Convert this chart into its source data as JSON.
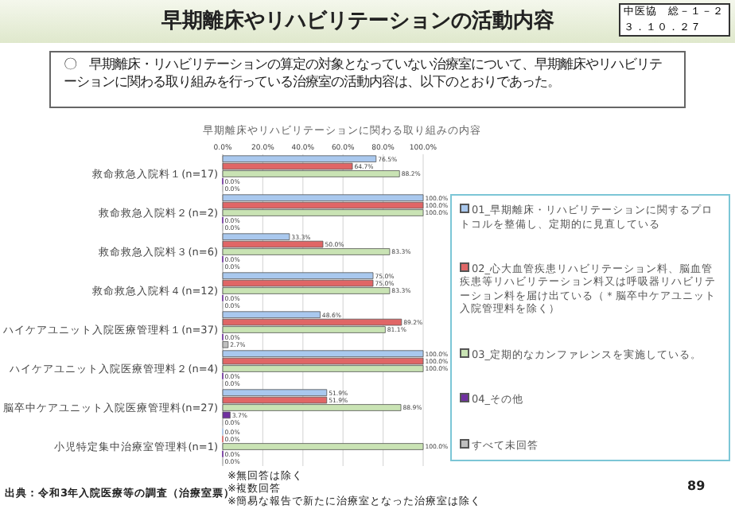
{
  "chart_data": {
    "type": "bar",
    "orientation": "horizontal",
    "title": "早期離床やリハビリテーションの活動内容",
    "subtitle": "早期離床やリハビリテーションに関わる取り組みの内容",
    "categories": [
      "救命救急入院料１(n=17)",
      "救命救急入院料２(n=2)",
      "救命救急入院料３(n=6)",
      "救命救急入院料４(n=12)",
      "ハイケアユニット入院医療管理料１(n=37)",
      "ハイケアユニット入院医療管理料２(n=4)",
      "脳卒中ケアユニット入院医療管理料(n=27)",
      "小児特定集中治療室管理料(n=1)"
    ],
    "series": [
      {
        "name": "01_早期離床・リハビリテーションに関するプロトコルを整備し、定期的に見直している",
        "color": "#a9c8ee",
        "values": [
          76.5,
          100.0,
          33.3,
          75.0,
          48.6,
          100.0,
          51.9,
          0.0
        ],
        "value_labels": [
          "76.5%",
          "100.0%",
          "33.3%",
          "75.0%",
          "48.6%",
          "100.0%",
          "51.9%",
          "0.0%"
        ]
      },
      {
        "name": "02_心大血管疾患リハビリテーション料、脳血管疾患等リハビリテーション料又は呼吸器リハビリテーション料を届け出ている（＊脳卒中ケアユニット入院管理料を除く）",
        "color": "#e06666",
        "values": [
          64.7,
          100.0,
          50.0,
          75.0,
          89.2,
          100.0,
          51.9,
          0.0
        ],
        "value_labels": [
          "64.7%",
          "100.0%",
          "50.0%",
          "75.0%",
          "89.2%",
          "100.0%",
          "51.9%",
          "0.0%"
        ]
      },
      {
        "name": "03_定期的なカンファレンスを実施している。",
        "color": "#c9e3b4",
        "values": [
          88.2,
          100.0,
          83.3,
          83.3,
          81.1,
          100.0,
          88.9,
          100.0
        ],
        "value_labels": [
          "88.2%",
          "100.0%",
          "83.3%",
          "83.3%",
          "81.1%",
          "100.0%",
          "88.9%",
          "100.0%"
        ]
      },
      {
        "name": "04_その他",
        "color": "#7030a0",
        "values": [
          0.0,
          0.0,
          0.0,
          0.0,
          0.0,
          0.0,
          3.7,
          0.0
        ],
        "value_labels": [
          "0.0%",
          "0.0%",
          "0.0%",
          "0.0%",
          "0.0%",
          "0.0%",
          "3.7%",
          "0.0%"
        ]
      },
      {
        "name": "すべて未回答",
        "color": "#bfbfbf",
        "values": [
          0.0,
          0.0,
          0.0,
          0.0,
          2.7,
          0.0,
          0.0,
          0.0
        ],
        "value_labels": [
          "0.0%",
          "0.0%",
          "0.0%",
          "0.0%",
          "2.7%",
          "0.0%",
          "0.0%",
          "0.0%"
        ]
      }
    ],
    "xlim": [
      0,
      100
    ],
    "xticks": [
      {
        "value": 0,
        "label": "0.0%"
      },
      {
        "value": 20,
        "label": "20.0%"
      },
      {
        "value": 40,
        "label": "40.0%"
      },
      {
        "value": 60,
        "label": "60.0%"
      },
      {
        "value": 80,
        "label": "80.0%"
      },
      {
        "value": 100,
        "label": "100.0%"
      }
    ],
    "grid": "x",
    "legend": "right",
    "annotations": [
      "〇　早期離床・リハビリテーションの算定の対象となっていない治療室について、早期離床やリハビリテーションに関わる取り組みを行っている治療室の活動内容は、以下のとおりであった。",
      "中医協　総－１－２",
      "３．１０．２７",
      "出典：令和3年入院医療等の調査（治療室票）",
      "※無回答は除く",
      "※複数回答",
      "※簡易な報告で新たに治療室となった治療室は除く",
      "89"
    ]
  }
}
